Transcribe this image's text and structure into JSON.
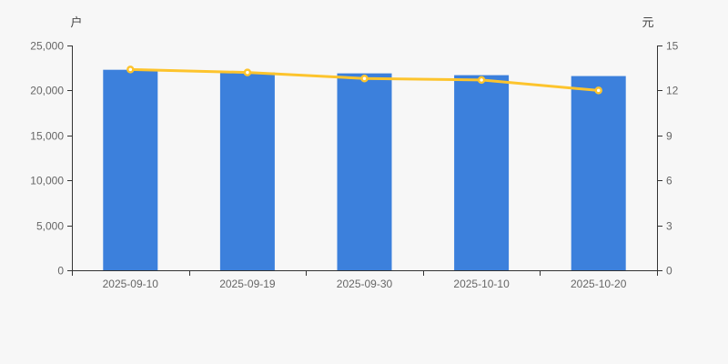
{
  "chart": {
    "background_color": "#f7f7f7",
    "axis_line_color": "#333333",
    "tick_label_color": "#666666",
    "unit_label_color": "#464646"
  },
  "chart_data": {
    "type": "bar",
    "subtype": "bar+line dual axis",
    "title": "",
    "xlabel": "",
    "left_ylabel": "户",
    "right_ylabel": "元",
    "categories": [
      "2025-09-10",
      "2025-09-19",
      "2025-09-30",
      "2025-10-10",
      "2025-10-20"
    ],
    "series": [
      {
        "name": "bar-series",
        "type": "bar",
        "axis": "left",
        "values": [
          22300,
          22000,
          21900,
          21700,
          21600
        ],
        "color": "#3c80dc"
      },
      {
        "name": "line-series",
        "type": "line",
        "axis": "right",
        "values": [
          13.4,
          13.2,
          12.8,
          12.7,
          12.0
        ],
        "color": "#fdc42d",
        "marker": "circle-white-fill"
      }
    ],
    "left_ylim": [
      0,
      25000
    ],
    "right_ylim": [
      0,
      15
    ],
    "left_tick_labels": [
      "0",
      "5,000",
      "10,000",
      "15,000",
      "20,000",
      "25,000"
    ],
    "left_tick_values": [
      0,
      5000,
      10000,
      15000,
      20000,
      25000
    ],
    "right_tick_labels": [
      "0",
      "3",
      "6",
      "9",
      "12",
      "15"
    ],
    "right_tick_values": [
      0,
      3,
      6,
      9,
      12,
      15
    ],
    "grid": false,
    "legend": "none"
  }
}
